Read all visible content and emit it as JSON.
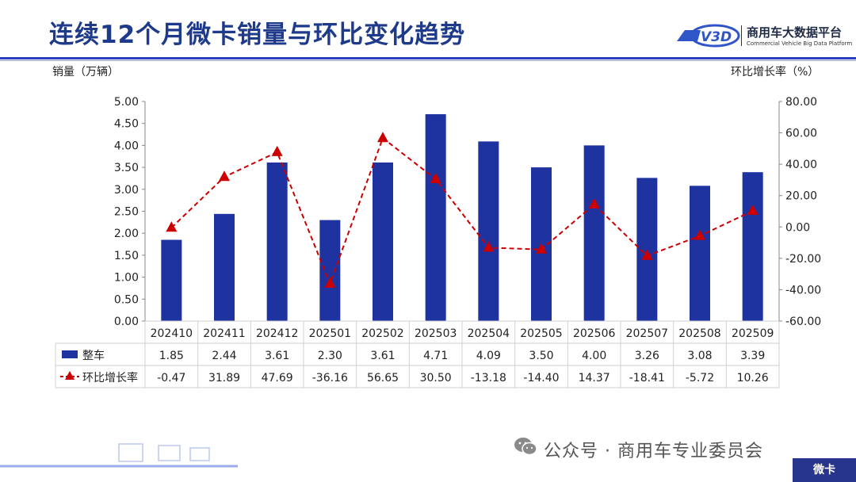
{
  "header": {
    "title": "连续12个月微卡销量与环比变化趋势",
    "brand_name": "商用车大数据平台",
    "brand_sub": "Commercial Vehicle Big Data Platform",
    "brand_logo_text": "V3D"
  },
  "chart_data": {
    "type": "bar",
    "categories": [
      "202410",
      "202411",
      "202412",
      "202501",
      "202502",
      "202503",
      "202504",
      "202505",
      "202506",
      "202507",
      "202508",
      "202509"
    ],
    "ylabel_left": "销量（万辆）",
    "ylabel_right": "环比增长率（%）",
    "ylim_left": [
      0,
      5
    ],
    "ylim_right": [
      -60,
      80
    ],
    "yticks_left": [
      "0.00",
      "0.50",
      "1.00",
      "1.50",
      "2.00",
      "2.50",
      "3.00",
      "3.50",
      "4.00",
      "4.50",
      "5.00"
    ],
    "yticks_right": [
      "-60.00",
      "-40.00",
      "-20.00",
      "0.00",
      "20.00",
      "40.00",
      "60.00",
      "80.00"
    ],
    "grid": false,
    "series": [
      {
        "name": "整车",
        "type": "bar",
        "axis": "left",
        "color": "#1e33a0",
        "values": [
          1.85,
          2.44,
          3.61,
          2.3,
          3.61,
          4.71,
          4.09,
          3.5,
          4.0,
          3.26,
          3.08,
          3.39
        ],
        "labels": [
          "1.85",
          "2.44",
          "3.61",
          "2.30",
          "3.61",
          "4.71",
          "4.09",
          "3.50",
          "4.00",
          "3.26",
          "3.08",
          "3.39"
        ]
      },
      {
        "name": "环比增长率",
        "type": "line",
        "axis": "right",
        "color": "#cc0000",
        "marker": "triangle",
        "dashed": true,
        "values": [
          -0.47,
          31.89,
          47.69,
          -36.16,
          56.65,
          30.5,
          -13.18,
          -14.4,
          14.37,
          -18.41,
          -5.72,
          10.26
        ],
        "labels": [
          "-0.47",
          "31.89",
          "47.69",
          "-36.16",
          "56.65",
          "30.50",
          "-13.18",
          "-14.40",
          "14.37",
          "-18.41",
          "-5.72",
          "10.26"
        ]
      }
    ]
  },
  "footer": {
    "account": "公众号 · 商用车专业委员会",
    "badge": "微卡"
  }
}
